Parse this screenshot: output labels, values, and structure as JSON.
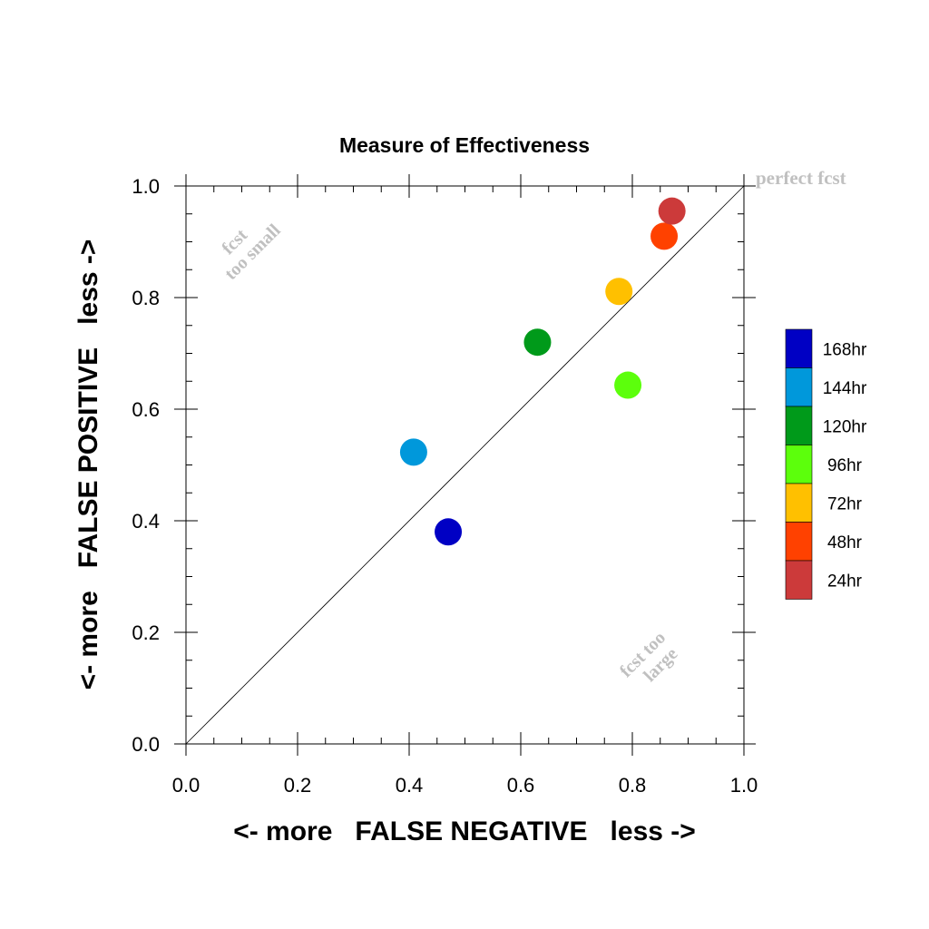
{
  "chart_data": {
    "type": "scatter",
    "title": "Measure of Effectiveness",
    "xlabel": "<- more   FALSE NEGATIVE   less ->",
    "ylabel": "<- more   FALSE POSITIVE   less ->",
    "xlim": [
      0.0,
      1.0
    ],
    "ylim": [
      0.0,
      1.0
    ],
    "x_ticks": [
      "0.0",
      "0.2",
      "0.4",
      "0.6",
      "0.8",
      "1.0"
    ],
    "y_ticks": [
      "0.0",
      "0.2",
      "0.4",
      "0.6",
      "0.8",
      "1.0"
    ],
    "grid": false,
    "diagonal_reference_line": true,
    "legend_position": "right",
    "annotations": {
      "perfect": "perfect fcst",
      "too_small_line1": "fcst",
      "too_small_line2": "too small",
      "too_large_line1": "fcst too",
      "too_large_line2": "large"
    },
    "series": [
      {
        "name": "168hr",
        "color": "#0000c4",
        "x": 0.47,
        "y": 0.38
      },
      {
        "name": "144hr",
        "color": "#0098db",
        "x": 0.408,
        "y": 0.523
      },
      {
        "name": "120hr",
        "color": "#009a1a",
        "x": 0.63,
        "y": 0.72
      },
      {
        "name": "96hr",
        "color": "#5cff0c",
        "x": 0.792,
        "y": 0.643
      },
      {
        "name": "72hr",
        "color": "#ffc000",
        "x": 0.776,
        "y": 0.811
      },
      {
        "name": "48hr",
        "color": "#ff4100",
        "x": 0.857,
        "y": 0.91
      },
      {
        "name": "24hr",
        "color": "#cc3a3a",
        "x": 0.871,
        "y": 0.955
      }
    ]
  }
}
